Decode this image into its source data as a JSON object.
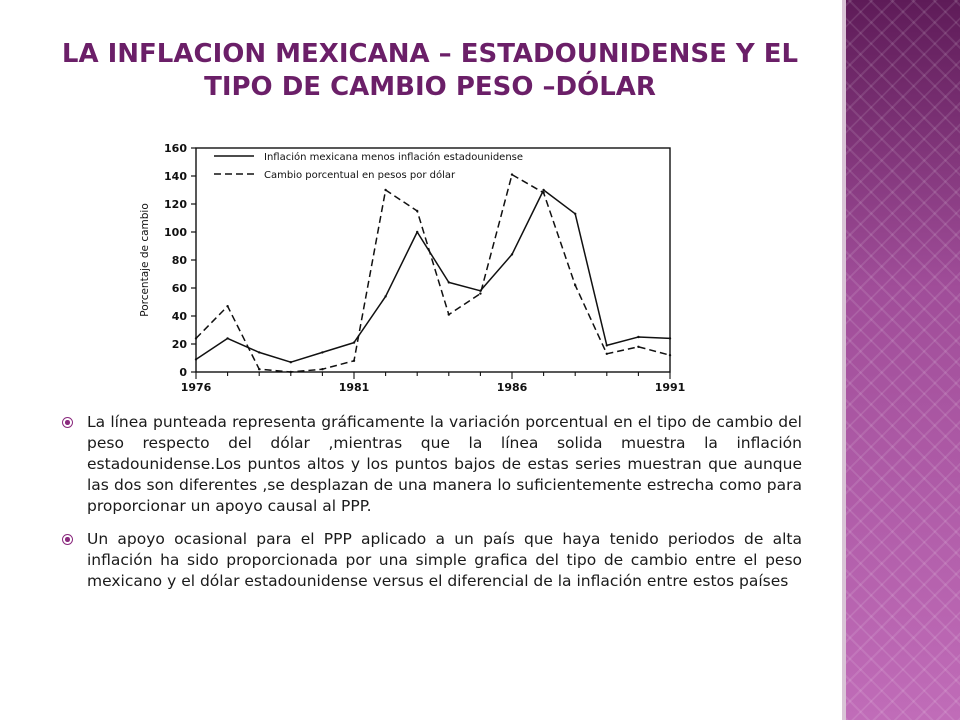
{
  "slide": {
    "title_line1": "LA INFLACION MEXICANA – ESTADOUNIDENSE Y EL",
    "title_line2": "TIPO DE CAMBIO PESO –DÓLAR",
    "title_color": "#6b1f68",
    "accent_color": "#a14f9a"
  },
  "bullets": [
    {
      "text": "La línea punteada representa gráficamente la variación porcentual en el tipo de cambio  del peso respecto del dólar ,mientras que la línea solida muestra la inflación estadounidense.Los puntos altos y los puntos bajos de estas series muestran que aunque las dos son diferentes ,se desplazan de una manera lo suficientemente estrecha como para proporcionar un apoyo causal al PPP."
    },
    {
      "text": "Un apoyo ocasional para el PPP aplicado a un país que haya tenido periodos de alta inflación ha sido proporcionada por una simple grafica del tipo de cambio entre el peso mexicano y el dólar estadounidense  versus el diferencial de la inflación entre estos países"
    }
  ],
  "chart_data": {
    "type": "line",
    "title": "",
    "xlabel": "",
    "ylabel": "Porcentaje de cambio",
    "xlim": [
      1976,
      1991
    ],
    "ylim": [
      0,
      160
    ],
    "x_ticks": [
      1976,
      1981,
      1986,
      1991
    ],
    "y_ticks": [
      0,
      20,
      40,
      60,
      80,
      100,
      120,
      140,
      160
    ],
    "grid": false,
    "legend_position": "top-left",
    "series": [
      {
        "name": "Inflación mexicana menos inflación estadounidense",
        "style": "solid",
        "x": [
          1976,
          1977,
          1978,
          1979,
          1980,
          1981,
          1982,
          1983,
          1984,
          1985,
          1986,
          1987,
          1988,
          1989,
          1990,
          1991
        ],
        "y": [
          9,
          24,
          14,
          7,
          14,
          21,
          54,
          100,
          64,
          58,
          84,
          130,
          113,
          19,
          25,
          24
        ]
      },
      {
        "name": "Cambio porcentual en pesos por dólar",
        "style": "dashed",
        "x": [
          1976,
          1977,
          1978,
          1979,
          1980,
          1981,
          1982,
          1983,
          1984,
          1985,
          1986,
          1987,
          1988,
          1989,
          1990,
          1991
        ],
        "y": [
          24,
          47,
          2,
          0,
          2,
          8,
          130,
          115,
          41,
          56,
          141,
          128,
          62,
          13,
          18,
          12
        ]
      }
    ]
  }
}
